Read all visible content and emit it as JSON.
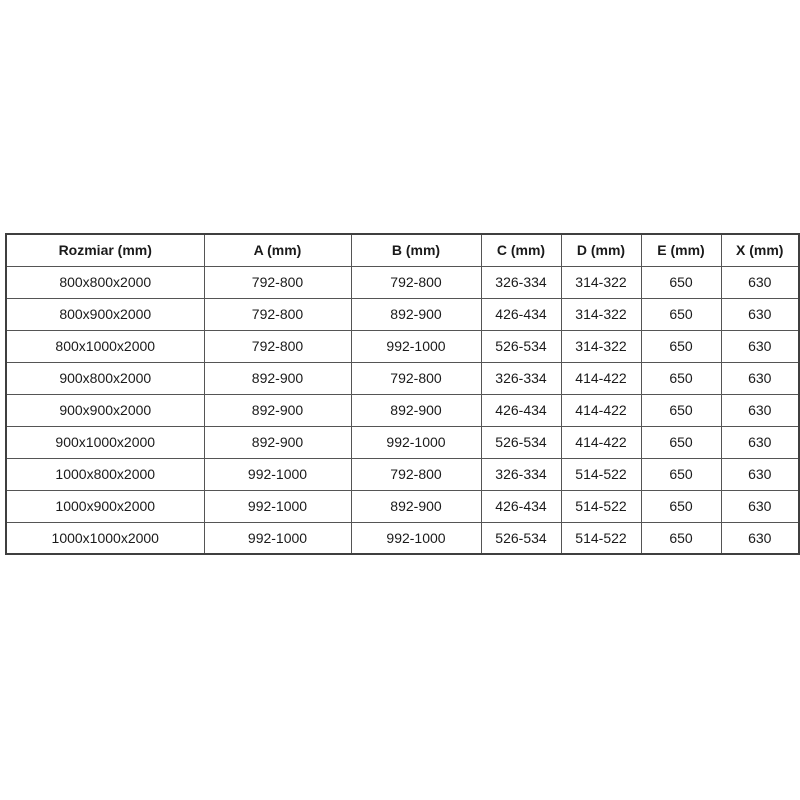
{
  "table": {
    "name": "dimensions-spec-table",
    "columns": [
      "Rozmiar (mm)",
      "A (mm)",
      "B (mm)",
      "C (mm)",
      "D (mm)",
      "E (mm)",
      "X (mm)"
    ],
    "rows": [
      [
        "800x800x2000",
        "792-800",
        "792-800",
        "326-334",
        "314-322",
        "650",
        "630"
      ],
      [
        "800x900x2000",
        "792-800",
        "892-900",
        "426-434",
        "314-322",
        "650",
        "630"
      ],
      [
        "800x1000x2000",
        "792-800",
        "992-1000",
        "526-534",
        "314-322",
        "650",
        "630"
      ],
      [
        "900x800x2000",
        "892-900",
        "792-800",
        "326-334",
        "414-422",
        "650",
        "630"
      ],
      [
        "900x900x2000",
        "892-900",
        "892-900",
        "426-434",
        "414-422",
        "650",
        "630"
      ],
      [
        "900x1000x2000",
        "892-900",
        "992-1000",
        "526-534",
        "414-422",
        "650",
        "630"
      ],
      [
        "1000x800x2000",
        "992-1000",
        "792-800",
        "326-334",
        "514-522",
        "650",
        "630"
      ],
      [
        "1000x900x2000",
        "992-1000",
        "892-900",
        "426-434",
        "514-522",
        "650",
        "630"
      ],
      [
        "1000x1000x2000",
        "992-1000",
        "992-1000",
        "526-534",
        "514-522",
        "650",
        "630"
      ]
    ]
  },
  "colors": {
    "border": "#555555",
    "outer_border": "#3f3f3f",
    "text": "#1a1a1a",
    "background": "#ffffff"
  }
}
